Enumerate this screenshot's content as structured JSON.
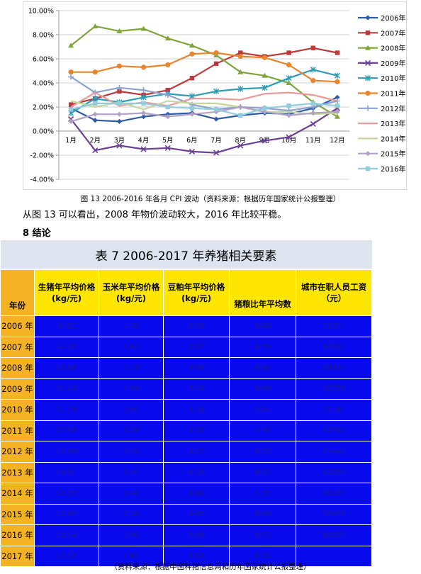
{
  "figure": {
    "caption": "图 13 2006-2016 年各月 CPI 波动（资料来源：根据历年国家统计公报整理）"
  },
  "paragraph": "从图 13 可以看出，2008 年物价波动较大，2016 年比较平稳。",
  "section_heading": "8  结论",
  "chart_data": {
    "type": "line",
    "categories": [
      "1月",
      "2月",
      "3月",
      "4月",
      "5月",
      "6月",
      "7月",
      "8月",
      "9月",
      "10月",
      "11月",
      "12月"
    ],
    "y_ticks": [
      "10.00%",
      "8.00%",
      "6.00%",
      "4.00%",
      "2.00%",
      "0.00%",
      "-2.00%",
      "-4.00%"
    ],
    "ylim": [
      -4,
      10
    ],
    "legend_position": "right",
    "series": [
      {
        "name": "2006年",
        "color": "#2e5aa7",
        "marker": "diamond",
        "values": [
          1.9,
          0.9,
          0.8,
          1.2,
          1.4,
          1.5,
          1.0,
          1.3,
          1.5,
          1.4,
          1.9,
          2.8
        ]
      },
      {
        "name": "2007年",
        "color": "#b83a3a",
        "marker": "square",
        "values": [
          2.2,
          2.7,
          3.3,
          3.0,
          3.4,
          4.4,
          5.6,
          6.5,
          6.2,
          6.5,
          6.9,
          6.5
        ]
      },
      {
        "name": "2008年",
        "color": "#7ea43a",
        "marker": "triangle",
        "values": [
          7.1,
          8.7,
          8.3,
          8.5,
          7.7,
          7.1,
          6.3,
          4.9,
          4.6,
          4.0,
          2.4,
          1.2
        ]
      },
      {
        "name": "2009年",
        "color": "#6b3f95",
        "marker": "x",
        "values": [
          1.0,
          -1.6,
          -1.2,
          -1.5,
          -1.4,
          -1.7,
          -1.8,
          -1.2,
          -0.8,
          -0.5,
          0.6,
          1.9
        ]
      },
      {
        "name": "2010年",
        "color": "#2d9cb7",
        "marker": "star",
        "values": [
          1.5,
          2.7,
          2.4,
          2.8,
          3.1,
          2.9,
          3.3,
          3.5,
          3.6,
          4.4,
          5.1,
          4.6
        ]
      },
      {
        "name": "2011年",
        "color": "#e8852c",
        "marker": "circle",
        "values": [
          4.9,
          4.9,
          5.4,
          5.3,
          5.5,
          6.4,
          6.5,
          6.2,
          6.1,
          5.5,
          4.2,
          4.1
        ]
      },
      {
        "name": "2012年",
        "color": "#8aa1cf",
        "marker": "plus",
        "values": [
          4.5,
          3.2,
          3.6,
          3.4,
          3.0,
          2.2,
          1.8,
          2.0,
          1.9,
          1.7,
          2.0,
          2.5
        ]
      },
      {
        "name": "2013年",
        "color": "#e79a9a",
        "marker": "none",
        "values": [
          2.0,
          3.2,
          2.1,
          2.4,
          2.1,
          2.7,
          2.7,
          2.6,
          3.1,
          3.2,
          3.0,
          2.5
        ]
      },
      {
        "name": "2014年",
        "color": "#c4d79b",
        "marker": "none",
        "values": [
          2.5,
          2.0,
          2.4,
          1.8,
          2.5,
          2.3,
          2.3,
          2.0,
          1.6,
          1.6,
          1.4,
          1.5
        ]
      },
      {
        "name": "2015年",
        "color": "#b1a0c7",
        "marker": "diamond",
        "values": [
          0.8,
          1.4,
          1.4,
          1.5,
          1.2,
          1.4,
          1.6,
          2.0,
          1.6,
          1.3,
          1.5,
          1.6
        ]
      },
      {
        "name": "2016年",
        "color": "#93cddd",
        "marker": "square",
        "values": [
          1.8,
          2.3,
          2.3,
          2.3,
          2.0,
          1.9,
          1.8,
          1.3,
          1.9,
          2.1,
          2.3,
          2.1
        ]
      }
    ]
  },
  "table": {
    "title": "表 7 2006-2017 年养猪相关要素",
    "headers": {
      "year": "年份",
      "hog": "生猪年平均价格(kg/元)",
      "corn": "玉米年平均价格(kg/元)",
      "soymeal": "豆粕年平均价格(kg/元)",
      "ratio": "猪粮比年平均数",
      "wage": "城市在职人员工资（元）"
    },
    "rows": [
      {
        "year": "2006 年",
        "hog": "8.52",
        "corn": "1.36",
        "soymeal": "2.33",
        "ratio": "6.08",
        "wage": "21001"
      },
      {
        "year": "2007 年",
        "hog": "12.26",
        "corn": "1.62",
        "soymeal": "2.87",
        "ratio": "6.79",
        "wage": "14932"
      },
      {
        "year": "2008 年",
        "hog": "15.03",
        "corn": "1.73",
        "soymeal": "3.95",
        "ratio": "8.82",
        "wage": "29229"
      },
      {
        "year": "2009 年",
        "hog": "11.48",
        "corn": "1.69",
        "soymeal": "3.48",
        "ratio": "6.80",
        "wage": "32736"
      },
      {
        "year": "2010 年",
        "hog": "11.74",
        "corn": "2.01",
        "soymeal": "3.33",
        "ratio": "5.84",
        "wage": "37147"
      },
      {
        "year": "2011 年",
        "hog": "17.03",
        "corn": "2.29",
        "soymeal": "3.32",
        "ratio": "7.41",
        "wage": "42452"
      },
      {
        "year": "2012 年",
        "hog": "15.04",
        "corn": "2.45",
        "soymeal": "3.77",
        "ratio": "6.25",
        "wage": "47593"
      },
      {
        "year": "2013 年",
        "hog": "14.81",
        "corn": "2.40",
        "soymeal": "4.23",
        "ratio": "6.17",
        "wage": "52388"
      },
      {
        "year": "2014 年",
        "hog": "13.28",
        "corn": "2.48",
        "soymeal": "3.86",
        "ratio": "5.35",
        "wage": "56339"
      },
      {
        "year": "2015 年",
        "hog": "15.07",
        "corn": "2.34",
        "soymeal": "3.02",
        "ratio": "6.60",
        "wage": "76978"
      },
      {
        "year": "2016 年",
        "hog": "18.59",
        "corn": "1.96",
        "soymeal": "2.83",
        "ratio": "9.57",
        "wage": "94825"
      },
      {
        "year": "2017 年",
        "hog": "15.18",
        "corn": "1.81",
        "soymeal": "3.18",
        "ratio": "8.31",
        "wage": ""
      }
    ],
    "source": "（资料来源：根据中国种猪信息网和历年国家统计公报整理）"
  }
}
